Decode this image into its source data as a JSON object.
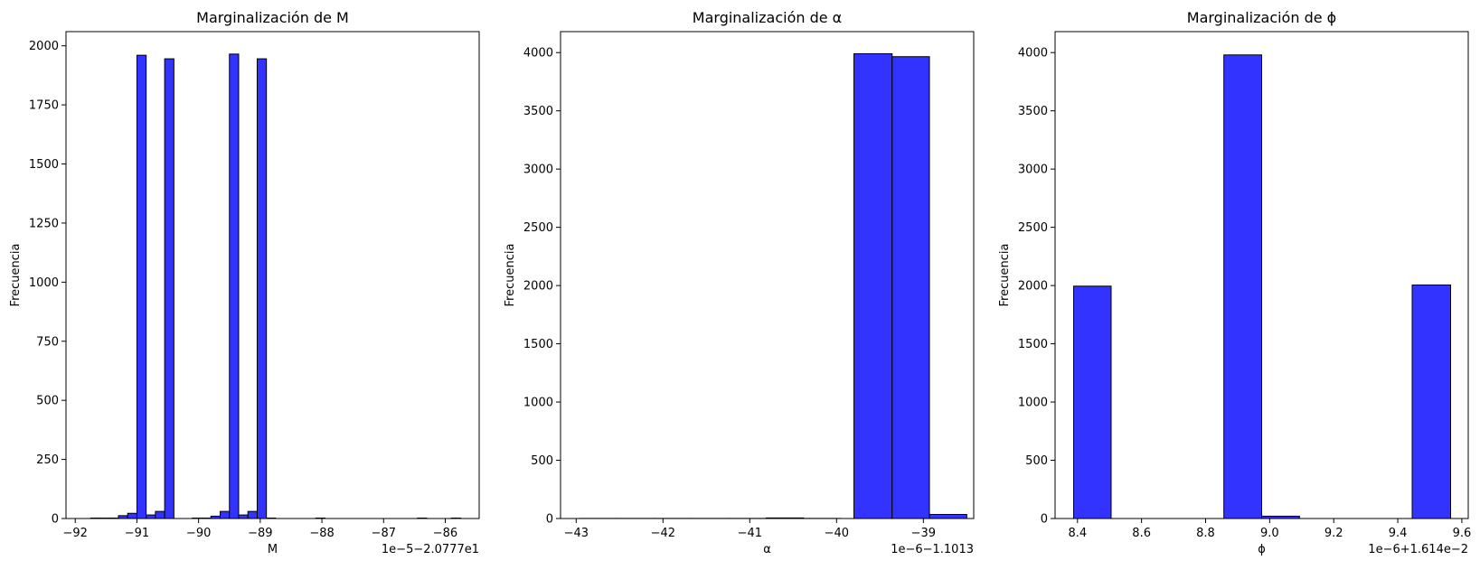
{
  "chart_data": [
    {
      "type": "bar",
      "title": "Marginalización de M",
      "xlabel": "M",
      "ylabel": "Frecuencia",
      "offset_text": "1e−5−2.0777e1",
      "xlim": [
        -92.15,
        -85.45
      ],
      "ylim": [
        0,
        2060
      ],
      "xticks": [
        -92,
        -91,
        -90,
        -89,
        -88,
        -87,
        -86
      ],
      "xtick_labels": [
        "−92",
        "−91",
        "−90",
        "−89",
        "−88",
        "−87",
        "−86"
      ],
      "yticks": [
        0,
        250,
        500,
        750,
        1000,
        1250,
        1500,
        1750,
        2000
      ],
      "yticks_labels": [
        "0",
        "250",
        "500",
        "750",
        "1000",
        "1250",
        "1500",
        "1750",
        "2000"
      ],
      "bins": [
        {
          "x0": -91.75,
          "x1": -91.6,
          "value": 2
        },
        {
          "x0": -91.6,
          "x1": -91.45,
          "value": 2
        },
        {
          "x0": -91.45,
          "x1": -91.3,
          "value": 2
        },
        {
          "x0": -91.3,
          "x1": -91.15,
          "value": 12
        },
        {
          "x0": -91.15,
          "x1": -91.0,
          "value": 22
        },
        {
          "x0": -91.0,
          "x1": -90.85,
          "value": 1960
        },
        {
          "x0": -90.85,
          "x1": -90.7,
          "value": 15
        },
        {
          "x0": -90.7,
          "x1": -90.55,
          "value": 30
        },
        {
          "x0": -90.55,
          "x1": -90.4,
          "value": 1945
        },
        {
          "x0": -90.1,
          "x1": -89.95,
          "value": 2
        },
        {
          "x0": -89.95,
          "x1": -89.8,
          "value": 2
        },
        {
          "x0": -89.8,
          "x1": -89.65,
          "value": 10
        },
        {
          "x0": -89.65,
          "x1": -89.5,
          "value": 30
        },
        {
          "x0": -89.5,
          "x1": -89.35,
          "value": 1965
        },
        {
          "x0": -89.35,
          "x1": -89.2,
          "value": 15
        },
        {
          "x0": -89.2,
          "x1": -89.05,
          "value": 30
        },
        {
          "x0": -89.05,
          "x1": -88.9,
          "value": 1945
        },
        {
          "x0": -88.9,
          "x1": -88.75,
          "value": 2
        },
        {
          "x0": -88.1,
          "x1": -87.95,
          "value": 2
        },
        {
          "x0": -86.45,
          "x1": -86.3,
          "value": 2
        },
        {
          "x0": -85.9,
          "x1": -85.75,
          "value": 2
        }
      ]
    },
    {
      "type": "bar",
      "title": "Marginalización de α",
      "xlabel": "α",
      "ylabel": "Frecuencia",
      "offset_text": "1e−6−1.1013",
      "xlim": [
        -43.18,
        -38.42
      ],
      "ylim": [
        0,
        4180
      ],
      "xticks": [
        -43,
        -42,
        -41,
        -40,
        -39
      ],
      "xtick_labels": [
        "−43",
        "−42",
        "−41",
        "−40",
        "−39"
      ],
      "yticks": [
        0,
        500,
        1000,
        1500,
        2000,
        2500,
        3000,
        3500,
        4000
      ],
      "yticks_labels": [
        "0",
        "500",
        "1000",
        "1500",
        "2000",
        "2500",
        "3000",
        "3500",
        "4000"
      ],
      "bins": [
        {
          "x0": -42.96,
          "x1": -42.53,
          "value": 1
        },
        {
          "x0": -42.53,
          "x1": -42.1,
          "value": 1
        },
        {
          "x0": -42.1,
          "x1": -41.67,
          "value": 1
        },
        {
          "x0": -41.67,
          "x1": -41.24,
          "value": 1
        },
        {
          "x0": -41.24,
          "x1": -40.81,
          "value": 1
        },
        {
          "x0": -40.81,
          "x1": -40.38,
          "value": 5
        },
        {
          "x0": -40.38,
          "x1": -39.95,
          "value": 1
        },
        {
          "x0": -39.8,
          "x1": -39.36,
          "value": 3990
        },
        {
          "x0": -39.36,
          "x1": -38.93,
          "value": 3965
        },
        {
          "x0": -38.93,
          "x1": -38.5,
          "value": 35
        }
      ]
    },
    {
      "type": "bar",
      "title": "Marginalización de ϕ",
      "xlabel": "ϕ",
      "ylabel": "Frecuencia",
      "offset_text": "1e−6+1.614e−2",
      "xlim": [
        8.33,
        9.62
      ],
      "ylim": [
        0,
        4180
      ],
      "xticks": [
        8.4,
        8.6,
        8.8,
        9.0,
        9.2,
        9.4,
        9.6
      ],
      "xtick_labels": [
        "8.4",
        "8.6",
        "8.8",
        "9.0",
        "9.2",
        "9.4",
        "9.6"
      ],
      "yticks": [
        0,
        500,
        1000,
        1500,
        2000,
        2500,
        3000,
        3500,
        4000
      ],
      "yticks_labels": [
        "0",
        "500",
        "1000",
        "1500",
        "2000",
        "2500",
        "3000",
        "3500",
        "4000"
      ],
      "bins": [
        {
          "x0": 8.388,
          "x1": 8.505,
          "value": 1995
        },
        {
          "x0": 8.857,
          "x1": 8.975,
          "value": 3980
        },
        {
          "x0": 8.975,
          "x1": 9.093,
          "value": 20
        },
        {
          "x0": 9.445,
          "x1": 9.565,
          "value": 2005
        }
      ]
    }
  ],
  "colors": {
    "bar_fill": "#3333ff",
    "bar_edge": "#000000"
  }
}
